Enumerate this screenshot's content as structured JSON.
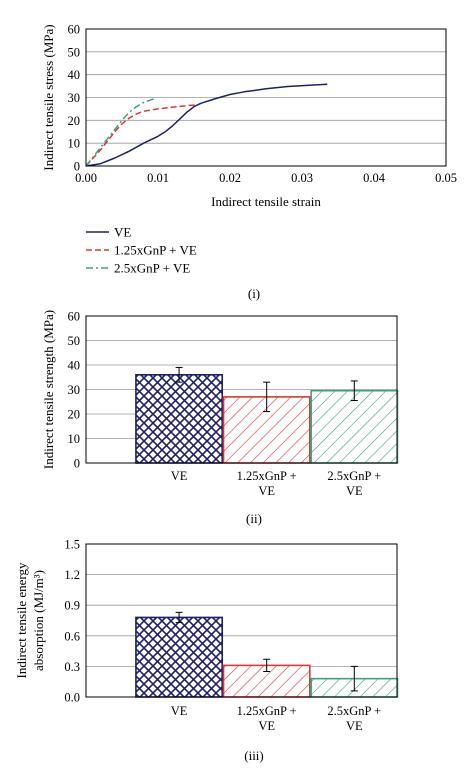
{
  "colors": {
    "ve": "#1f1f6e",
    "gnp125": "#d63b3b",
    "gnp25": "#3aa37a"
  },
  "chart_data": [
    {
      "type": "line",
      "panel_label": "(i)",
      "xlabel": "Indirect tensile strain",
      "ylabel": "Indirect tensile stress (MPa)",
      "xlim": [
        0,
        0.05
      ],
      "ylim": [
        0,
        60
      ],
      "xticks": [
        "0.00",
        "0.01",
        "0.02",
        "0.03",
        "0.04",
        "0.05"
      ],
      "yticks": [
        "0",
        "10",
        "20",
        "30",
        "40",
        "50",
        "60"
      ],
      "legend_position": "bottom-left-outside",
      "series": [
        {
          "name": "VE",
          "color_key": "ve",
          "dash": "solid",
          "x": [
            0.0,
            0.002,
            0.004,
            0.006,
            0.008,
            0.01,
            0.011,
            0.012,
            0.013,
            0.014,
            0.015,
            0.016,
            0.018,
            0.02,
            0.022,
            0.025,
            0.028,
            0.031,
            0.0335
          ],
          "y": [
            0.0,
            1.0,
            3.5,
            6.5,
            10.0,
            13.0,
            15.0,
            17.5,
            20.5,
            23.5,
            26.0,
            27.5,
            29.5,
            31.3,
            32.5,
            33.8,
            34.8,
            35.4,
            35.8
          ]
        },
        {
          "name": "1.25xGnP + VE",
          "color_key": "gnp125",
          "dash": "dashed",
          "x": [
            0.0,
            0.001,
            0.002,
            0.003,
            0.004,
            0.005,
            0.006,
            0.007,
            0.008,
            0.01,
            0.012,
            0.014,
            0.0155
          ],
          "y": [
            0.0,
            3.5,
            7.0,
            11.0,
            15.0,
            18.5,
            21.0,
            22.8,
            24.0,
            25.0,
            25.8,
            26.4,
            26.8
          ]
        },
        {
          "name": "2.5xGnP + VE",
          "color_key": "gnp25",
          "dash": "dashdot",
          "x": [
            0.0,
            0.001,
            0.002,
            0.003,
            0.004,
            0.005,
            0.006,
            0.007,
            0.008,
            0.009,
            0.0098
          ],
          "y": [
            0.0,
            4.0,
            8.0,
            12.0,
            16.0,
            20.0,
            23.5,
            26.0,
            27.8,
            29.0,
            29.6
          ]
        }
      ]
    },
    {
      "type": "bar",
      "panel_label": "(ii)",
      "xlabel": "",
      "ylabel": "Indirect tensile strength (MPa)",
      "ylim": [
        0,
        60
      ],
      "yticks": [
        "0",
        "10",
        "20",
        "30",
        "40",
        "50",
        "60"
      ],
      "categories": [
        "VE",
        "1.25xGnP + VE",
        "2.5xGnP + VE"
      ],
      "category_lines": [
        [
          "VE"
        ],
        [
          "1.25xGnP +",
          "VE"
        ],
        [
          "2.5xGnP +",
          "VE"
        ]
      ],
      "values": [
        36.0,
        27.0,
        29.5
      ],
      "errors": [
        3.0,
        6.0,
        4.0
      ],
      "patterns": [
        "crosshatch",
        "diagonal",
        "diagonal"
      ]
    },
    {
      "type": "bar",
      "panel_label": "(iii)",
      "xlabel": "",
      "ylabel_lines": [
        "Indirect tensile energy",
        "absorption (MJ/m³)"
      ],
      "ylim": [
        0,
        1.5
      ],
      "yticks": [
        "0.0",
        "0.3",
        "0.6",
        "0.9",
        "1.2",
        "1.5"
      ],
      "categories": [
        "VE",
        "1.25xGnP + VE",
        "2.5xGnP + VE"
      ],
      "category_lines": [
        [
          "VE"
        ],
        [
          "1.25xGnP +",
          "VE"
        ],
        [
          "2.5xGnP +",
          "VE"
        ]
      ],
      "values": [
        0.78,
        0.31,
        0.18
      ],
      "errors": [
        0.05,
        0.06,
        0.12
      ],
      "patterns": [
        "crosshatch",
        "diagonal",
        "diagonal"
      ]
    }
  ]
}
